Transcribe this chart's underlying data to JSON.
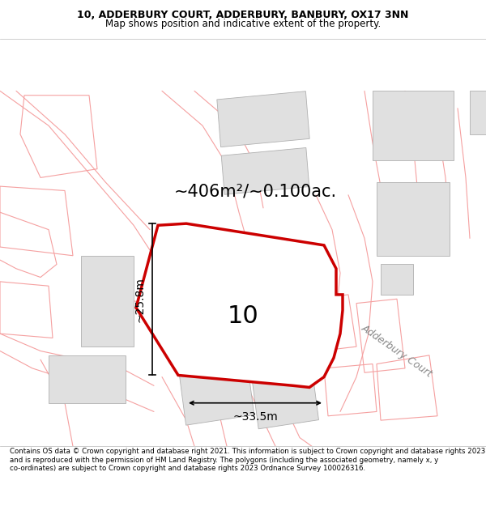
{
  "title_line1": "10, ADDERBURY COURT, ADDERBURY, BANBURY, OX17 3NN",
  "title_line2": "Map shows position and indicative extent of the property.",
  "area_text": "~406m²/~0.100ac.",
  "number_label": "10",
  "dim_width": "~33.5m",
  "dim_height": "~25.8m",
  "street_label": "Adderbury Court",
  "footer_text": "Contains OS data © Crown copyright and database right 2021. This information is subject to Crown copyright and database rights 2023 and is reproduced with the permission of HM Land Registry. The polygons (including the associated geometry, namely x, y co-ordinates) are subject to Crown copyright and database rights 2023 Ordnance Survey 100026316.",
  "bg_color": "#ffffff",
  "highlight_color": "#cc0000",
  "road_color": "#f5a0a0",
  "building_fill": "#e0e0e0",
  "building_edge": "#b0b0b0",
  "title_fontsize": 9,
  "subtitle_fontsize": 8.5,
  "area_fontsize": 15,
  "label_fontsize": 22,
  "dim_fontsize": 10,
  "street_fontsize": 9,
  "footer_fontsize": 6.2
}
